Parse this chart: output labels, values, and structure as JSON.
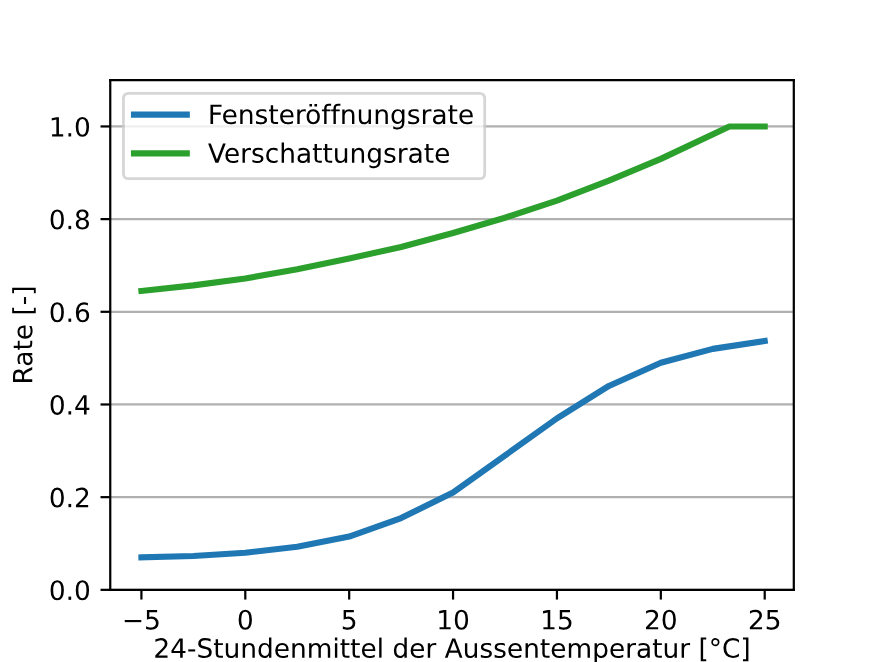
{
  "chart_data": {
    "type": "line",
    "xlabel": "24-Stundenmittel der Aussentemperatur [°C]",
    "ylabel": "Rate [-]",
    "xlim": [
      -6.5,
      26.4
    ],
    "xticks": [
      {
        "value": -5,
        "label": "−5"
      },
      0,
      5,
      10,
      15,
      20,
      25
    ],
    "ylim": [
      0,
      1.1
    ],
    "yticks": [
      {
        "value": 0,
        "label": "0.0"
      },
      0.2,
      0.4,
      0.6,
      0.8,
      {
        "value": 1,
        "label": "1.0"
      }
    ],
    "grid": "y",
    "legend": "top left",
    "series": [
      {
        "name": "Fensteröffnungsrate",
        "color": "#1f77b4",
        "x": [
          -5,
          -2.5,
          0,
          2.5,
          5,
          7.5,
          10,
          12.5,
          15,
          17.5,
          20,
          22.5,
          25
        ],
        "values": [
          0.07,
          0.073,
          0.08,
          0.093,
          0.115,
          0.155,
          0.21,
          0.29,
          0.37,
          0.44,
          0.49,
          0.52,
          0.537
        ]
      },
      {
        "name": "Verschattungsrate",
        "color": "#2ca02c",
        "x": [
          -5,
          -2.5,
          0,
          2.5,
          5,
          7.5,
          10,
          12.5,
          15,
          17.5,
          20,
          23.3,
          25
        ],
        "values": [
          0.645,
          0.657,
          0.672,
          0.692,
          0.715,
          0.74,
          0.77,
          0.803,
          0.84,
          0.883,
          0.93,
          1.0,
          1.0
        ]
      }
    ]
  }
}
